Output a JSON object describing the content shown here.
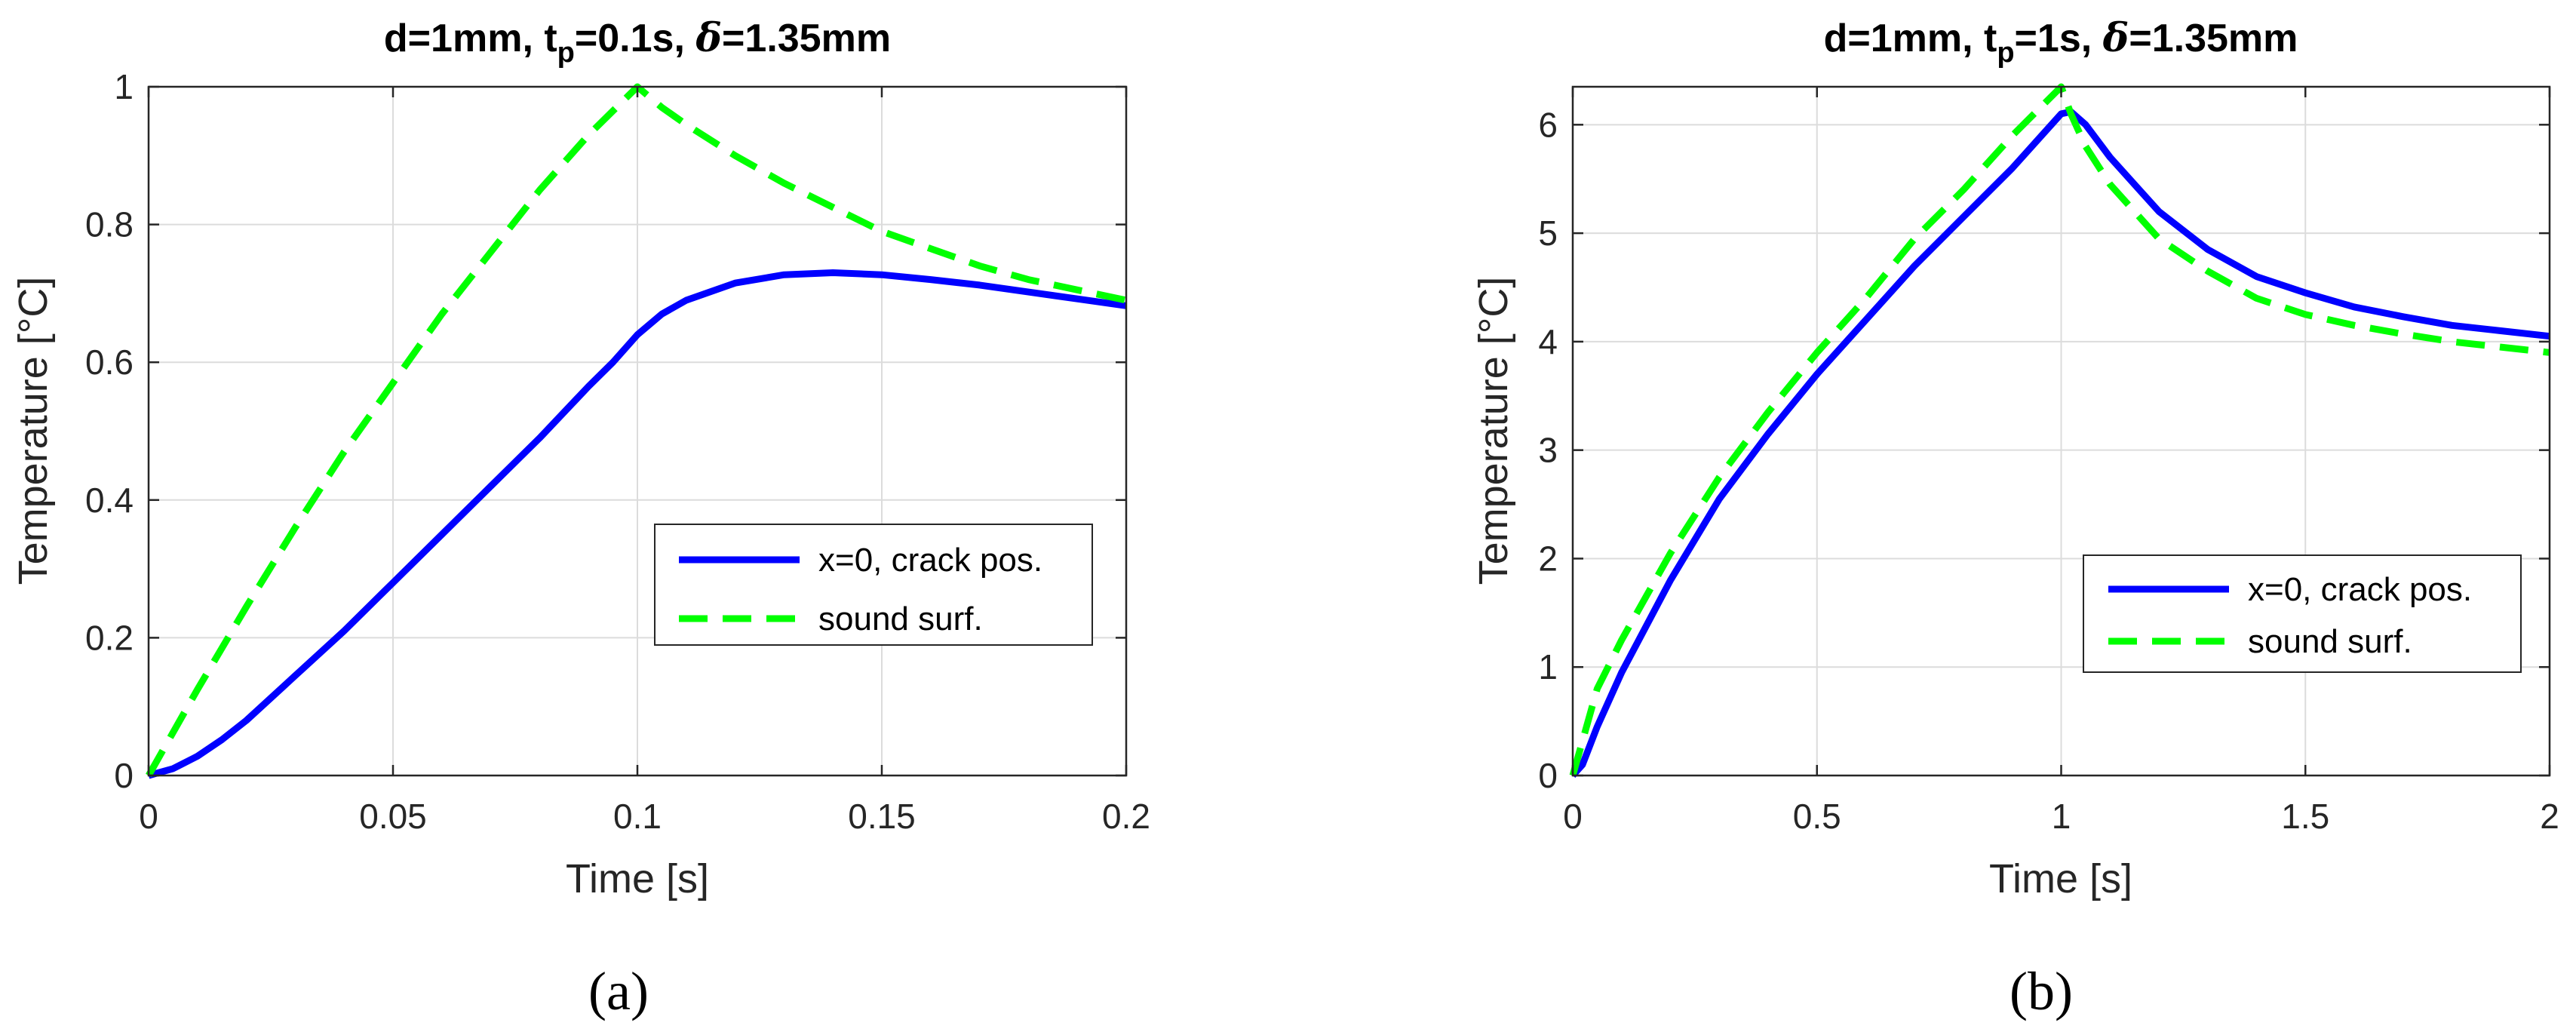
{
  "chart_data": [
    {
      "type": "line",
      "panel_label": "(a)",
      "title": {
        "prefix": "d=1mm, t",
        "subscript": "p",
        "middle": "=0.1s, ",
        "delta": "δ",
        "suffix": "=1.35mm"
      },
      "xlabel": "Time [s]",
      "ylabel": "Temperature [°C]",
      "xlim": [
        0,
        0.2
      ],
      "ylim": [
        0,
        1
      ],
      "xticks": [
        0,
        0.05,
        0.1,
        0.15,
        0.2
      ],
      "xtick_labels": [
        "0",
        "0.05",
        "0.1",
        "0.15",
        "0.2"
      ],
      "yticks": [
        0,
        0.2,
        0.4,
        0.6,
        0.8,
        1
      ],
      "ytick_labels": [
        "0",
        "0.2",
        "0.4",
        "0.6",
        "0.8",
        "1"
      ],
      "grid": true,
      "legend_position": "lower-right",
      "series": [
        {
          "name": "x=0, crack pos.",
          "color": "#0000ff",
          "style": "solid",
          "x": [
            0,
            0.005,
            0.01,
            0.015,
            0.02,
            0.03,
            0.04,
            0.05,
            0.06,
            0.07,
            0.08,
            0.09,
            0.095,
            0.1,
            0.105,
            0.11,
            0.12,
            0.13,
            0.14,
            0.15,
            0.16,
            0.17,
            0.18,
            0.19,
            0.2
          ],
          "y": [
            0,
            0.01,
            0.028,
            0.052,
            0.08,
            0.145,
            0.21,
            0.28,
            0.35,
            0.42,
            0.49,
            0.565,
            0.6,
            0.64,
            0.67,
            0.69,
            0.715,
            0.727,
            0.73,
            0.727,
            0.72,
            0.712,
            0.702,
            0.692,
            0.682
          ]
        },
        {
          "name": "sound surf.",
          "color": "#00ff00",
          "style": "dashed",
          "x": [
            0,
            0.01,
            0.02,
            0.03,
            0.04,
            0.05,
            0.06,
            0.07,
            0.08,
            0.09,
            0.1,
            0.105,
            0.11,
            0.12,
            0.13,
            0.14,
            0.15,
            0.16,
            0.17,
            0.18,
            0.19,
            0.2
          ],
          "y": [
            0,
            0.125,
            0.245,
            0.36,
            0.47,
            0.57,
            0.67,
            0.76,
            0.85,
            0.93,
            1.0,
            0.97,
            0.945,
            0.9,
            0.86,
            0.825,
            0.79,
            0.765,
            0.74,
            0.72,
            0.705,
            0.69
          ]
        }
      ]
    },
    {
      "type": "line",
      "panel_label": "(b)",
      "title": {
        "prefix": "d=1mm, t",
        "subscript": "p",
        "middle": "=1s, ",
        "delta": "δ",
        "suffix": "=1.35mm"
      },
      "xlabel": "Time [s]",
      "ylabel": "Temperature [°C]",
      "xlim": [
        0,
        2
      ],
      "ylim": [
        0,
        6.35
      ],
      "xticks": [
        0,
        0.5,
        1,
        1.5,
        2
      ],
      "xtick_labels": [
        "0",
        "0.5",
        "1",
        "1.5",
        "2"
      ],
      "yticks": [
        0,
        1,
        2,
        3,
        4,
        5,
        6
      ],
      "ytick_labels": [
        "0",
        "1",
        "2",
        "3",
        "4",
        "5",
        "6"
      ],
      "grid": true,
      "legend_position": "lower-right",
      "series": [
        {
          "name": "x=0, crack pos.",
          "color": "#0000ff",
          "style": "solid",
          "x": [
            0,
            0.02,
            0.05,
            0.1,
            0.2,
            0.3,
            0.4,
            0.5,
            0.6,
            0.7,
            0.8,
            0.9,
            0.95,
            1.0,
            1.02,
            1.05,
            1.1,
            1.2,
            1.3,
            1.4,
            1.5,
            1.6,
            1.7,
            1.8,
            1.9,
            2.0
          ],
          "y": [
            0,
            0.1,
            0.45,
            0.95,
            1.8,
            2.55,
            3.15,
            3.7,
            4.2,
            4.7,
            5.15,
            5.6,
            5.85,
            6.1,
            6.12,
            6.0,
            5.7,
            5.2,
            4.85,
            4.6,
            4.45,
            4.32,
            4.23,
            4.15,
            4.1,
            4.05
          ]
        },
        {
          "name": "sound surf.",
          "color": "#00ff00",
          "style": "dashed",
          "x": [
            0,
            0.05,
            0.1,
            0.2,
            0.3,
            0.4,
            0.5,
            0.6,
            0.7,
            0.8,
            0.9,
            1.0,
            1.02,
            1.05,
            1.1,
            1.2,
            1.3,
            1.4,
            1.5,
            1.6,
            1.7,
            1.8,
            1.9,
            2.0
          ],
          "y": [
            0,
            0.8,
            1.25,
            2.05,
            2.75,
            3.35,
            3.9,
            4.4,
            4.95,
            5.4,
            5.9,
            6.35,
            6.1,
            5.8,
            5.45,
            4.95,
            4.65,
            4.4,
            4.25,
            4.15,
            4.07,
            4.0,
            3.95,
            3.9
          ]
        }
      ]
    }
  ]
}
